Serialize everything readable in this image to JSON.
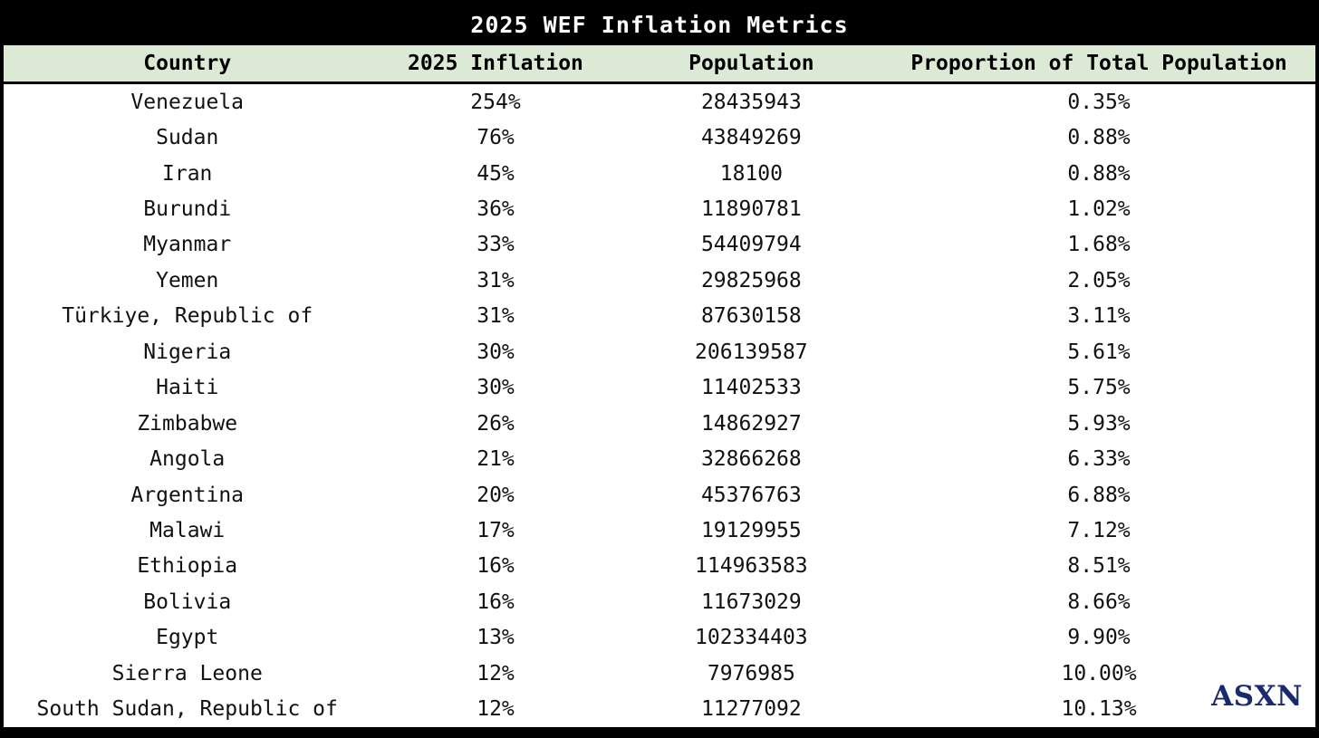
{
  "title": "2025 WEF Inflation Metrics",
  "watermark": "ASXN",
  "colors": {
    "title_bg": "#000000",
    "title_text": "#ffffff",
    "header_bg": "#dcead5",
    "border": "#000000",
    "watermark": "#1a2a6e"
  },
  "chart_data": {
    "type": "table",
    "title": "2025 WEF Inflation Metrics",
    "columns": [
      "Country",
      "2025 Inflation",
      "Population",
      "Proportion of Total Population"
    ],
    "rows": [
      [
        "Venezuela",
        "254%",
        "28435943",
        "0.35%"
      ],
      [
        "Sudan",
        "76%",
        "43849269",
        "0.88%"
      ],
      [
        "Iran",
        "45%",
        "18100",
        "0.88%"
      ],
      [
        "Burundi",
        "36%",
        "11890781",
        "1.02%"
      ],
      [
        "Myanmar",
        "33%",
        "54409794",
        "1.68%"
      ],
      [
        "Yemen",
        "31%",
        "29825968",
        "2.05%"
      ],
      [
        "Türkiye, Republic of",
        "31%",
        "87630158",
        "3.11%"
      ],
      [
        "Nigeria",
        "30%",
        "206139587",
        "5.61%"
      ],
      [
        "Haiti",
        "30%",
        "11402533",
        "5.75%"
      ],
      [
        "Zimbabwe",
        "26%",
        "14862927",
        "5.93%"
      ],
      [
        "Angola",
        "21%",
        "32866268",
        "6.33%"
      ],
      [
        "Argentina",
        "20%",
        "45376763",
        "6.88%"
      ],
      [
        "Malawi",
        "17%",
        "19129955",
        "7.12%"
      ],
      [
        "Ethiopia",
        "16%",
        "114963583",
        "8.51%"
      ],
      [
        "Bolivia",
        "16%",
        "11673029",
        "8.66%"
      ],
      [
        "Egypt",
        "13%",
        "102334403",
        "9.90%"
      ],
      [
        "Sierra Leone",
        "12%",
        "7976985",
        "10.00%"
      ],
      [
        "South Sudan, Republic of",
        "12%",
        "11277092",
        "10.13%"
      ]
    ]
  }
}
